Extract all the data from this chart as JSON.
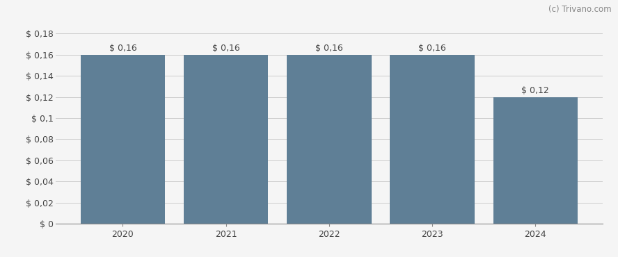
{
  "categories": [
    "2020",
    "2021",
    "2022",
    "2023",
    "2024"
  ],
  "values": [
    0.16,
    0.16,
    0.16,
    0.16,
    0.12
  ],
  "bar_labels": [
    "$ 0,16",
    "$ 0,16",
    "$ 0,16",
    "$ 0,16",
    "$ 0,12"
  ],
  "bar_color": "#5f7f96",
  "background_color": "#f5f5f5",
  "grid_color": "#cccccc",
  "ylim": [
    0,
    0.19
  ],
  "yticks": [
    0,
    0.02,
    0.04,
    0.06,
    0.08,
    0.1,
    0.12,
    0.14,
    0.16,
    0.18
  ],
  "ytick_labels": [
    "$ 0",
    "$ 0,02",
    "$ 0,04",
    "$ 0,06",
    "$ 0,08",
    "$ 0,1",
    "$ 0,12",
    "$ 0,14",
    "$ 0,16",
    "$ 0,18"
  ],
  "watermark": "(c) Trivano.com",
  "bar_width": 0.82,
  "label_fontsize": 9,
  "tick_fontsize": 9,
  "watermark_fontsize": 8.5
}
